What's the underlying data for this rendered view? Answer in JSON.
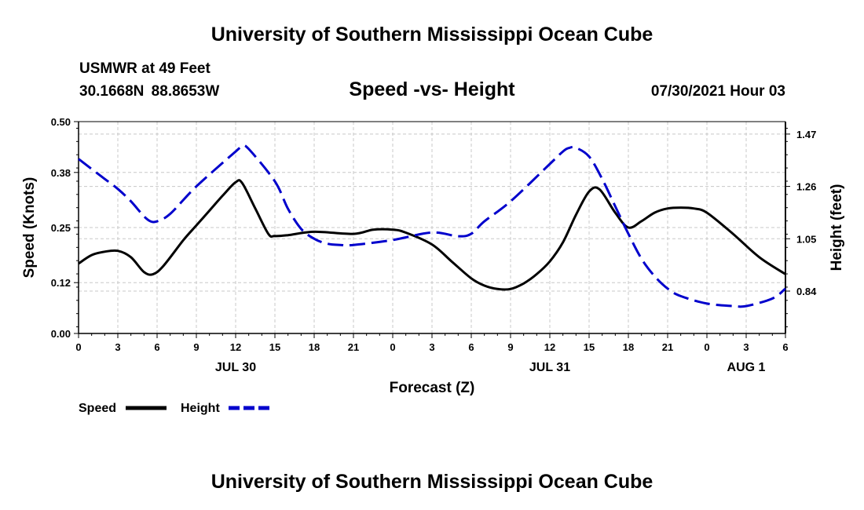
{
  "header": {
    "title": "University of Southern Mississippi Ocean Cube",
    "station": "USMWR at 49 Feet",
    "coordinates": "30.1668N  88.8653W",
    "datetime": "07/30/2021 Hour 03"
  },
  "footer": {
    "title": "University of Southern Mississippi Ocean Cube"
  },
  "colors": {
    "speed": "#000000",
    "height": "#0000cc",
    "grid": "#c8c8c8"
  },
  "chart_data": {
    "type": "line",
    "title": "Speed -vs- Height",
    "xlabel": "Forecast (Z)",
    "ylabel": "Speed (Knots)",
    "y2label": "Height (feet)",
    "x_range_hours": [
      0,
      54
    ],
    "ylim": [
      0.0,
      0.5
    ],
    "y2lim": [
      0.67,
      1.52
    ],
    "y_ticks": [
      "0.00",
      "0.12",
      "0.25",
      "0.38",
      "0.50"
    ],
    "y2_ticks": [
      "0.84",
      "1.05",
      "1.26",
      "1.47"
    ],
    "x_ticks": [
      {
        "hour": 0,
        "label": "0"
      },
      {
        "hour": 3,
        "label": "3"
      },
      {
        "hour": 6,
        "label": "6"
      },
      {
        "hour": 9,
        "label": "9"
      },
      {
        "hour": 12,
        "label": "12"
      },
      {
        "hour": 15,
        "label": "15"
      },
      {
        "hour": 18,
        "label": "18"
      },
      {
        "hour": 21,
        "label": "21"
      },
      {
        "hour": 24,
        "label": "0"
      },
      {
        "hour": 27,
        "label": "3"
      },
      {
        "hour": 30,
        "label": "6"
      },
      {
        "hour": 33,
        "label": "9"
      },
      {
        "hour": 36,
        "label": "12"
      },
      {
        "hour": 39,
        "label": "15"
      },
      {
        "hour": 42,
        "label": "18"
      },
      {
        "hour": 45,
        "label": "21"
      },
      {
        "hour": 48,
        "label": "0"
      },
      {
        "hour": 51,
        "label": "3"
      },
      {
        "hour": 54,
        "label": "6"
      }
    ],
    "day_labels": [
      {
        "hour": 12,
        "label": "JUL 30"
      },
      {
        "hour": 36,
        "label": "JUL 31"
      },
      {
        "hour": 51,
        "label": "AUG 1"
      }
    ],
    "legend": [
      {
        "name": "Speed",
        "style": "solid"
      },
      {
        "name": "Height",
        "style": "dashed"
      }
    ],
    "series": [
      {
        "name": "Speed",
        "axis": "left",
        "x": [
          0,
          1,
          2,
          3,
          4,
          5,
          5.7,
          6.5,
          8,
          9,
          10,
          11,
          12,
          12.5,
          13.5,
          14.5,
          15,
          16,
          18,
          21,
          22.5,
          24,
          25,
          27,
          28.5,
          30,
          31,
          32,
          33,
          34,
          35,
          36,
          37,
          38,
          39,
          39.8,
          41,
          42,
          43,
          44,
          45,
          46,
          47,
          48,
          50,
          52,
          54
        ],
        "values": [
          0.165,
          0.185,
          0.193,
          0.195,
          0.18,
          0.145,
          0.14,
          0.16,
          0.22,
          0.255,
          0.29,
          0.325,
          0.357,
          0.355,
          0.295,
          0.235,
          0.23,
          0.232,
          0.24,
          0.235,
          0.245,
          0.245,
          0.238,
          0.21,
          0.17,
          0.13,
          0.113,
          0.105,
          0.105,
          0.118,
          0.14,
          0.17,
          0.215,
          0.28,
          0.335,
          0.34,
          0.285,
          0.25,
          0.265,
          0.285,
          0.295,
          0.297,
          0.295,
          0.285,
          0.235,
          0.18,
          0.14
        ]
      },
      {
        "name": "Height",
        "axis": "right",
        "x": [
          0,
          2,
          3,
          4,
          5,
          5.5,
          6,
          7,
          9,
          12,
          12.5,
          13,
          15,
          16,
          17,
          18,
          19,
          20,
          21,
          24,
          27,
          29,
          30,
          31,
          33,
          36,
          37,
          37.5,
          38,
          39,
          40,
          41,
          42,
          43,
          44,
          45,
          46,
          48,
          50,
          51,
          53,
          54
        ],
        "values": [
          1.37,
          1.29,
          1.25,
          1.2,
          1.14,
          1.12,
          1.12,
          1.15,
          1.26,
          1.4,
          1.42,
          1.41,
          1.28,
          1.17,
          1.09,
          1.05,
          1.03,
          1.025,
          1.025,
          1.045,
          1.075,
          1.06,
          1.07,
          1.12,
          1.2,
          1.35,
          1.4,
          1.415,
          1.415,
          1.38,
          1.29,
          1.18,
          1.07,
          0.97,
          0.9,
          0.85,
          0.82,
          0.79,
          0.78,
          0.78,
          0.81,
          0.85
        ]
      }
    ]
  }
}
